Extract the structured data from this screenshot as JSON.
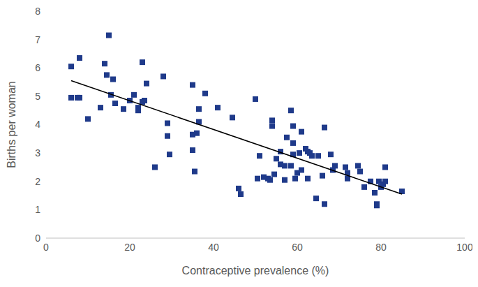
{
  "chart_data": {
    "type": "scatter",
    "x_label": "Contraceptive prevalence (%)",
    "y_label": "Births per woman",
    "xlim": [
      0,
      100
    ],
    "xticks": [
      0,
      20,
      40,
      60,
      80,
      100
    ],
    "ylim": [
      0,
      8
    ],
    "yticks": [
      0,
      1,
      2,
      3,
      4,
      5,
      6,
      7,
      8
    ],
    "grid": false,
    "series": [
      {
        "type": "scatter",
        "marker": "square",
        "color": "#1f3a8a",
        "x": [
          6,
          6,
          7.5,
          8,
          8,
          10,
          13,
          14,
          14.5,
          15,
          15.5,
          16,
          16.5,
          18.5,
          20,
          21,
          22,
          22,
          23,
          23,
          23.5,
          24,
          26,
          28,
          29,
          29,
          29.5,
          35,
          35,
          35,
          35.5,
          36,
          36.5,
          36.5,
          38,
          41,
          44.5,
          46,
          46.5,
          50,
          50.5,
          51,
          52,
          53,
          53.5,
          54,
          54,
          54.5,
          55,
          56,
          56,
          57,
          57,
          57.5,
          58.5,
          58.5,
          59,
          59,
          59,
          59.5,
          60,
          60.5,
          61,
          61,
          62,
          62.5,
          62.5,
          63,
          63.5,
          64.5,
          65,
          66,
          66.5,
          66.5,
          68,
          68.5,
          69,
          71.5,
          72,
          72,
          74.5,
          75,
          76,
          77.5,
          78.5,
          79,
          79,
          79.5,
          80,
          80.5,
          81,
          81,
          85
        ],
        "values": [
          6.05,
          4.95,
          4.95,
          6.35,
          4.95,
          4.2,
          4.6,
          6.15,
          5.75,
          7.15,
          5.05,
          5.6,
          4.75,
          4.55,
          4.85,
          5.05,
          4.5,
          4.6,
          6.2,
          4.8,
          4.85,
          5.45,
          2.5,
          5.7,
          3.6,
          4.05,
          2.95,
          5.4,
          3.1,
          3.65,
          2.35,
          3.7,
          4.1,
          4.55,
          5.1,
          4.6,
          4.25,
          1.75,
          1.55,
          4.9,
          2.1,
          2.9,
          2.15,
          2.1,
          2.05,
          4.15,
          3.95,
          2.25,
          2.8,
          3.05,
          2.6,
          2.05,
          2.55,
          3.55,
          2.55,
          4.5,
          3.35,
          2.95,
          3.95,
          2.1,
          2.3,
          3.0,
          3.75,
          2.4,
          3.15,
          3.05,
          2.1,
          3.0,
          2.9,
          1.4,
          2.9,
          2.2,
          3.9,
          1.2,
          2.95,
          2.4,
          2.55,
          2.5,
          2.1,
          2.3,
          2.55,
          2.35,
          1.8,
          2.0,
          1.6,
          1.15,
          1.2,
          2.0,
          1.8,
          1.9,
          2.5,
          2.0,
          1.65
        ]
      },
      {
        "type": "line",
        "color": "#000000",
        "x": [
          6,
          85
        ],
        "values": [
          5.55,
          1.55
        ]
      }
    ]
  }
}
